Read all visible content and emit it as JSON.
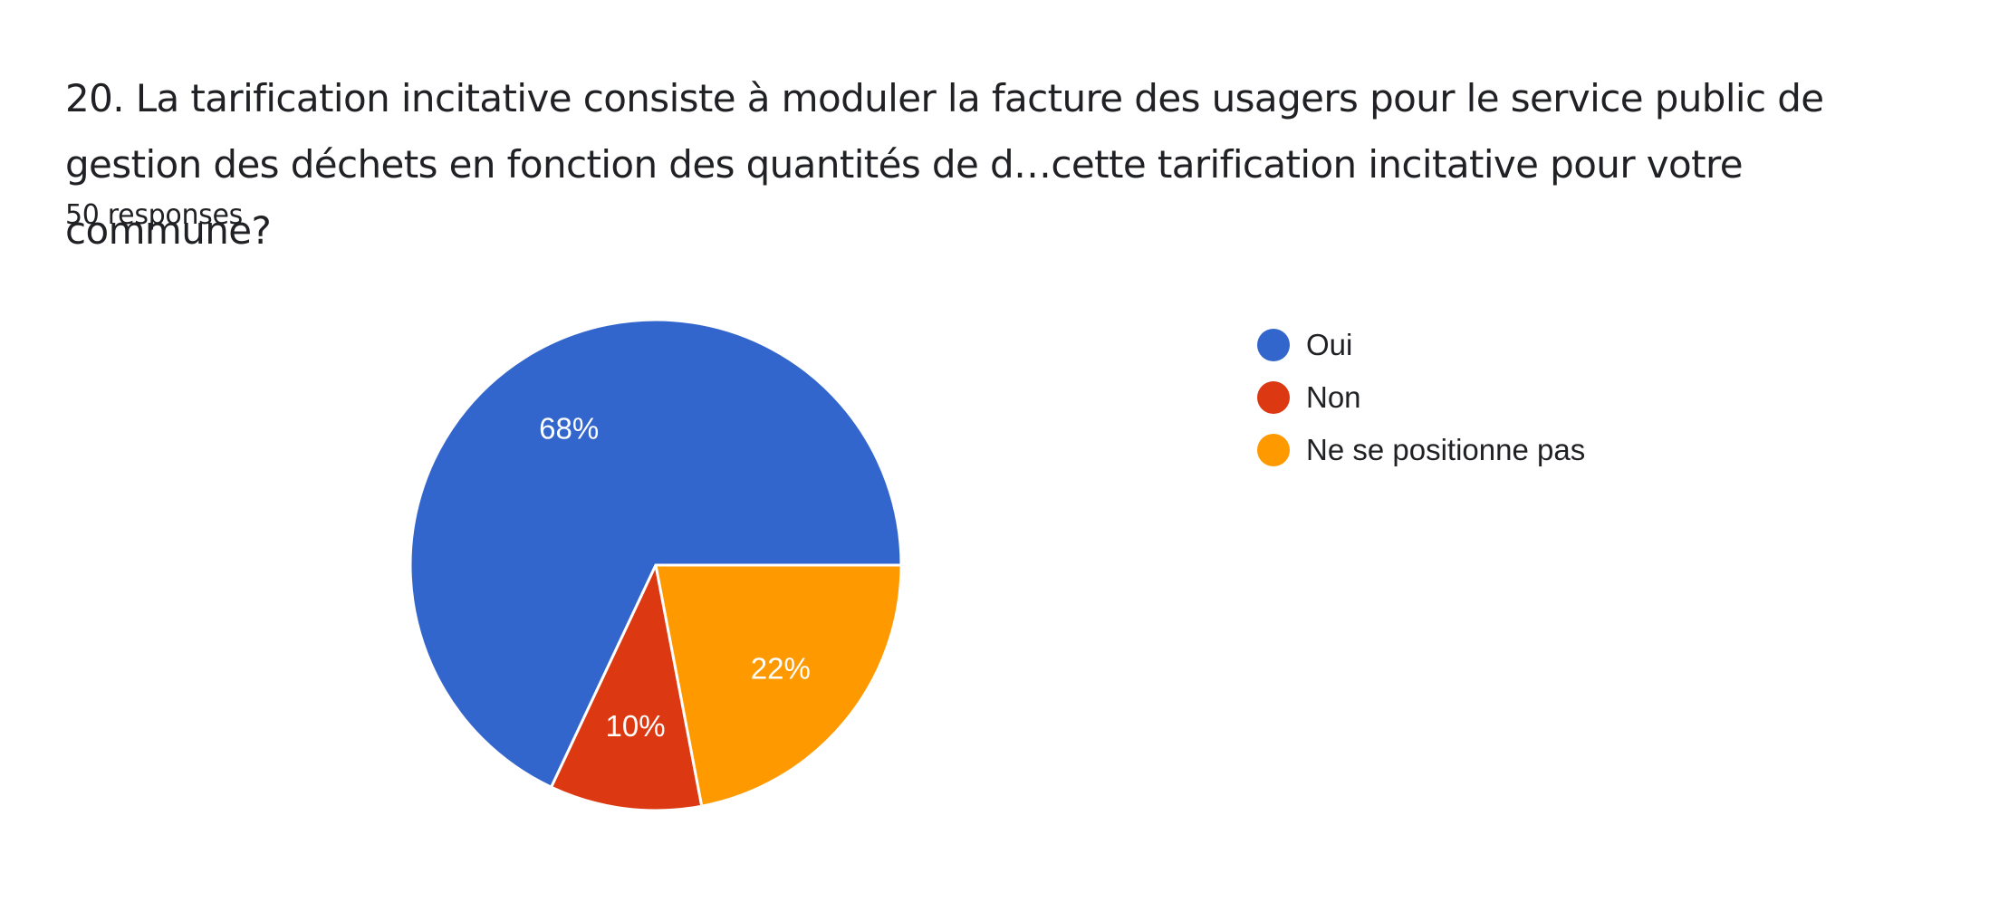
{
  "header": {
    "title": "20. La tarification incitative consiste à moduler la facture des usagers pour le service public de gestion des déchets en fonction des quantités de d…cette tarification incitative pour votre commune?",
    "response_count": "50 responses"
  },
  "chart_data": {
    "type": "pie",
    "categories": [
      "Oui",
      "Non",
      "Ne se positionne pas"
    ],
    "values": [
      68,
      10,
      22
    ],
    "value_labels": [
      "68%",
      "10%",
      "22%"
    ],
    "colors": [
      "#3366cc",
      "#dc3912",
      "#ff9900"
    ],
    "legend_position": "right",
    "start_direction": "right, counter-clockwise"
  }
}
